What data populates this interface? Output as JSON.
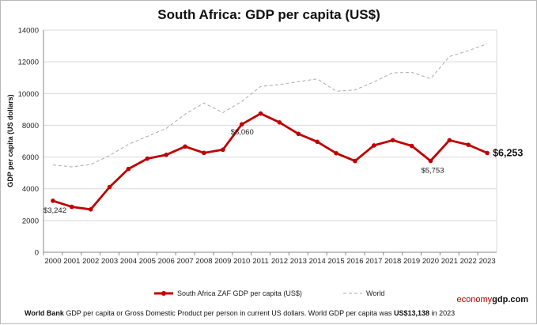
{
  "chart_data": {
    "type": "line",
    "title": "South Africa: GDP per capita (US$)",
    "xlabel": "",
    "ylabel": "GDP per capita (US dollars)",
    "ylim": [
      0,
      14000
    ],
    "yticks": [
      0,
      2000,
      4000,
      6000,
      8000,
      10000,
      12000,
      14000
    ],
    "grid": true,
    "legend_placement": "bottom",
    "x": [
      "2000",
      "2001",
      "2002",
      "2003",
      "2004",
      "2005",
      "2006",
      "2007",
      "2008",
      "2009",
      "2010",
      "2011",
      "2012",
      "2013",
      "2014",
      "2015",
      "2016",
      "2017",
      "2018",
      "2019",
      "2020",
      "2021",
      "2022",
      "2023"
    ],
    "series": [
      {
        "name": "South Africa ZAF GDP per capita (US$)",
        "color": "#c00000",
        "style": "solid-markers",
        "values": [
          3242,
          2860,
          2700,
          4110,
          5250,
          5900,
          6140,
          6660,
          6260,
          6460,
          8060,
          8740,
          8180,
          7460,
          6960,
          6240,
          5750,
          6730,
          7060,
          6700,
          5753,
          7060,
          6770,
          6253
        ]
      },
      {
        "name": "World",
        "color": "#aaaaaa",
        "style": "dashed",
        "values": [
          5500,
          5380,
          5530,
          6100,
          6800,
          7300,
          7800,
          8700,
          9400,
          8800,
          9500,
          10450,
          10560,
          10750,
          10920,
          10150,
          10230,
          10730,
          11310,
          11340,
          10940,
          12330,
          12700,
          13138
        ]
      }
    ],
    "annotations": [
      {
        "year": "2000",
        "label": "$3,242"
      },
      {
        "year": "2010",
        "label": "$8,060"
      },
      {
        "year": "2020",
        "label": "$5,753"
      },
      {
        "year": "2023",
        "label": "$6,253"
      }
    ]
  },
  "footer": {
    "part1": "World Bank",
    "part2": " GDP per capita or Gross Domestic Product per person in current US dollars.   World GDP per capita was ",
    "part3": "US$13,138",
    "part4": " in 2023"
  },
  "brand": {
    "part1": "economy",
    "part2": "gdp",
    "part3": ".com"
  }
}
